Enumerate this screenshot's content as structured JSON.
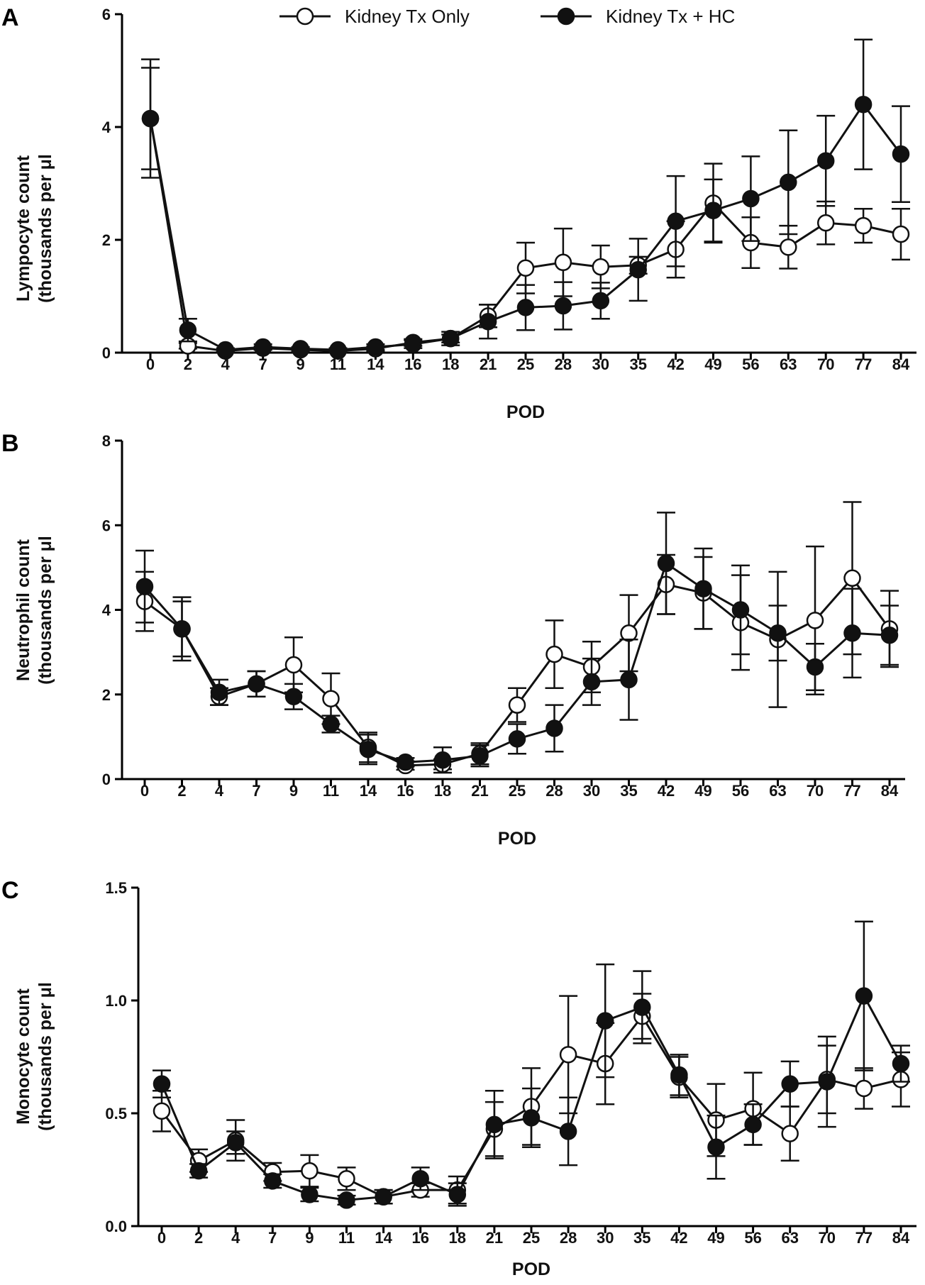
{
  "legend": {
    "open_label": "Kidney Tx Only",
    "filled_label": "Kidney Tx + HC"
  },
  "chart_data": [
    {
      "panel": "A",
      "type": "line",
      "xlabel": "POD",
      "ylabel_line1": "Lympocyte count",
      "ylabel_line2": "(thousands per μl",
      "categories": [
        "0",
        "2",
        "4",
        "7",
        "9",
        "11",
        "14",
        "16",
        "18",
        "21",
        "25",
        "28",
        "30",
        "35",
        "42",
        "49",
        "56",
        "63",
        "70",
        "77",
        "84"
      ],
      "ylim": [
        0,
        6
      ],
      "yticks": [
        {
          "v": 0,
          "label": "0"
        },
        {
          "v": 2,
          "label": "2"
        },
        {
          "v": 4,
          "label": "4"
        },
        {
          "v": 6,
          "label": "6"
        }
      ],
      "series": [
        {
          "name": "Kidney Tx Only",
          "marker": "open",
          "values": [
            4.15,
            0.12,
            0.03,
            0.08,
            0.05,
            0.03,
            0.07,
            0.18,
            0.25,
            0.65,
            1.5,
            1.6,
            1.52,
            1.55,
            1.83,
            2.65,
            1.95,
            1.87,
            2.3,
            2.25,
            2.1
          ],
          "errors": [
            0.9,
            0.05,
            0.02,
            0.03,
            0.03,
            0.02,
            0.04,
            0.06,
            0.07,
            0.2,
            0.45,
            0.6,
            0.38,
            0.15,
            0.5,
            0.7,
            0.45,
            0.38,
            0.38,
            0.3,
            0.45
          ]
        },
        {
          "name": "Kidney Tx + HC",
          "marker": "filled",
          "values": [
            4.15,
            0.4,
            0.05,
            0.1,
            0.07,
            0.05,
            0.1,
            0.15,
            0.25,
            0.55,
            0.8,
            0.83,
            0.92,
            1.47,
            2.33,
            2.52,
            2.73,
            3.02,
            3.4,
            4.4,
            3.52
          ],
          "errors": [
            1.05,
            0.2,
            0.03,
            0.05,
            0.03,
            0.03,
            0.05,
            0.07,
            0.12,
            0.3,
            0.4,
            0.42,
            0.32,
            0.55,
            0.8,
            0.55,
            0.75,
            0.92,
            0.8,
            1.15,
            0.85
          ]
        }
      ]
    },
    {
      "panel": "B",
      "type": "line",
      "xlabel": "POD",
      "ylabel_line1": "Neutrophil count",
      "ylabel_line2": "(thousands per μl",
      "categories": [
        "0",
        "2",
        "4",
        "7",
        "9",
        "11",
        "14",
        "16",
        "18",
        "21",
        "25",
        "28",
        "30",
        "35",
        "42",
        "49",
        "56",
        "63",
        "70",
        "77",
        "84"
      ],
      "ylim": [
        0,
        8
      ],
      "yticks": [
        {
          "v": 0,
          "label": "0"
        },
        {
          "v": 2,
          "label": "2"
        },
        {
          "v": 4,
          "label": "4"
        },
        {
          "v": 6,
          "label": "6"
        },
        {
          "v": 8,
          "label": "8"
        }
      ],
      "series": [
        {
          "name": "Kidney Tx Only",
          "marker": "open",
          "values": [
            4.2,
            3.55,
            1.95,
            2.25,
            2.7,
            1.9,
            0.75,
            0.32,
            0.35,
            0.6,
            1.75,
            2.95,
            2.65,
            3.45,
            4.6,
            4.4,
            3.7,
            3.3,
            3.75,
            4.75,
            3.55
          ],
          "errors": [
            0.7,
            0.75,
            0.2,
            0.3,
            0.65,
            0.6,
            0.35,
            0.1,
            0.12,
            0.25,
            0.4,
            0.8,
            0.6,
            0.9,
            0.7,
            0.85,
            1.12,
            1.6,
            1.75,
            1.8,
            0.9
          ]
        },
        {
          "name": "Kidney Tx + HC",
          "marker": "filled",
          "values": [
            4.55,
            3.55,
            2.05,
            2.25,
            1.95,
            1.3,
            0.7,
            0.4,
            0.45,
            0.55,
            0.95,
            1.2,
            2.3,
            2.35,
            5.1,
            4.5,
            4.0,
            3.45,
            2.65,
            3.45,
            3.4
          ],
          "errors": [
            0.85,
            0.65,
            0.3,
            0.3,
            0.3,
            0.2,
            0.35,
            0.1,
            0.3,
            0.25,
            0.35,
            0.55,
            0.55,
            0.95,
            1.2,
            0.95,
            1.05,
            0.65,
            0.55,
            1.05,
            0.7
          ]
        }
      ]
    },
    {
      "panel": "C",
      "type": "line",
      "xlabel": "POD",
      "ylabel_line1": "Monocyte count",
      "ylabel_line2": "(thousands per μl",
      "categories": [
        "0",
        "2",
        "4",
        "7",
        "9",
        "11",
        "14",
        "16",
        "18",
        "21",
        "25",
        "28",
        "30",
        "35",
        "42",
        "49",
        "56",
        "63",
        "70",
        "77",
        "84"
      ],
      "ylim": [
        0,
        1.5
      ],
      "yticks": [
        {
          "v": 0,
          "label": "0.0"
        },
        {
          "v": 0.5,
          "label": "0.5"
        },
        {
          "v": 1.0,
          "label": "1.0"
        },
        {
          "v": 1.5,
          "label": "1.5"
        }
      ],
      "series": [
        {
          "name": "Kidney Tx Only",
          "marker": "open",
          "values": [
            0.51,
            0.29,
            0.38,
            0.24,
            0.245,
            0.21,
            0.13,
            0.16,
            0.16,
            0.43,
            0.53,
            0.76,
            0.72,
            0.93,
            0.66,
            0.47,
            0.52,
            0.41,
            0.65,
            0.61,
            0.65
          ],
          "errors": [
            0.09,
            0.05,
            0.09,
            0.04,
            0.07,
            0.05,
            0.03,
            0.03,
            0.06,
            0.12,
            0.17,
            0.26,
            0.18,
            0.1,
            0.09,
            0.16,
            0.16,
            0.12,
            0.15,
            0.09,
            0.12
          ]
        },
        {
          "name": "Kidney Tx + HC",
          "marker": "filled",
          "values": [
            0.63,
            0.245,
            0.37,
            0.2,
            0.14,
            0.115,
            0.13,
            0.21,
            0.14,
            0.45,
            0.48,
            0.42,
            0.91,
            0.97,
            0.67,
            0.35,
            0.45,
            0.63,
            0.64,
            1.02,
            0.72
          ],
          "errors": [
            0.06,
            0.03,
            0.05,
            0.03,
            0.03,
            0.02,
            0.03,
            0.05,
            0.05,
            0.15,
            0.13,
            0.15,
            0.25,
            0.16,
            0.09,
            0.14,
            0.09,
            0.1,
            0.2,
            0.33,
            0.08
          ]
        }
      ]
    }
  ]
}
